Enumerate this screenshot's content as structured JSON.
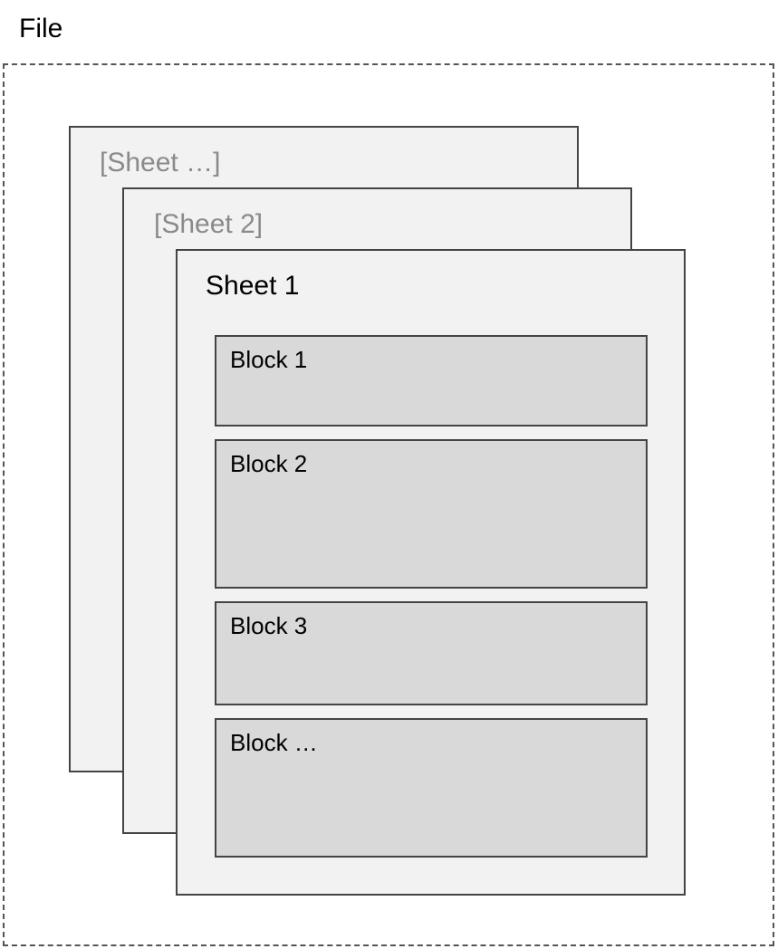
{
  "file": {
    "label": "File"
  },
  "sheets": [
    {
      "label": "[Sheet …]",
      "style": "muted"
    },
    {
      "label": "[Sheet 2]",
      "style": "muted"
    },
    {
      "label": "Sheet 1",
      "style": "active"
    }
  ],
  "blocks": [
    {
      "label": "Block 1"
    },
    {
      "label": "Block 2"
    },
    {
      "label": "Block 3"
    },
    {
      "label": "Block …"
    }
  ],
  "colors": {
    "sheet_fill": "#f2f2f2",
    "block_fill": "#d9d9d9",
    "border": "#444444",
    "muted_text": "#8a8a8a"
  }
}
